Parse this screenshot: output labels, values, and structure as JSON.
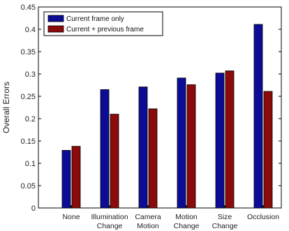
{
  "chart_data": {
    "type": "bar",
    "title": "",
    "xlabel": "",
    "ylabel": "Overall Errors",
    "ylim": [
      0,
      0.45
    ],
    "yticks": [
      0,
      0.05,
      0.1,
      0.15,
      0.2,
      0.25,
      0.3,
      0.35,
      0.4,
      0.45
    ],
    "ytick_labels": [
      "0",
      "0.05",
      "0.1",
      "0.15",
      "0.2",
      "0.25",
      "0.3",
      "0.35",
      "0.4",
      "0.45"
    ],
    "categories": [
      [
        "None"
      ],
      [
        "Illumination",
        "Change"
      ],
      [
        "Camera",
        "Motion"
      ],
      [
        "Motion",
        "Change"
      ],
      [
        "Size",
        "Change"
      ],
      [
        "Occlusion"
      ]
    ],
    "series": [
      {
        "name": "Current frame only",
        "color": "#0c0c96",
        "values": [
          0.129,
          0.265,
          0.271,
          0.291,
          0.302,
          0.411
        ]
      },
      {
        "name": "Current + previous frame",
        "color": "#8b0a0a",
        "values": [
          0.138,
          0.21,
          0.222,
          0.276,
          0.307,
          0.261
        ]
      }
    ],
    "legend_position": "top-left",
    "grid": false
  }
}
